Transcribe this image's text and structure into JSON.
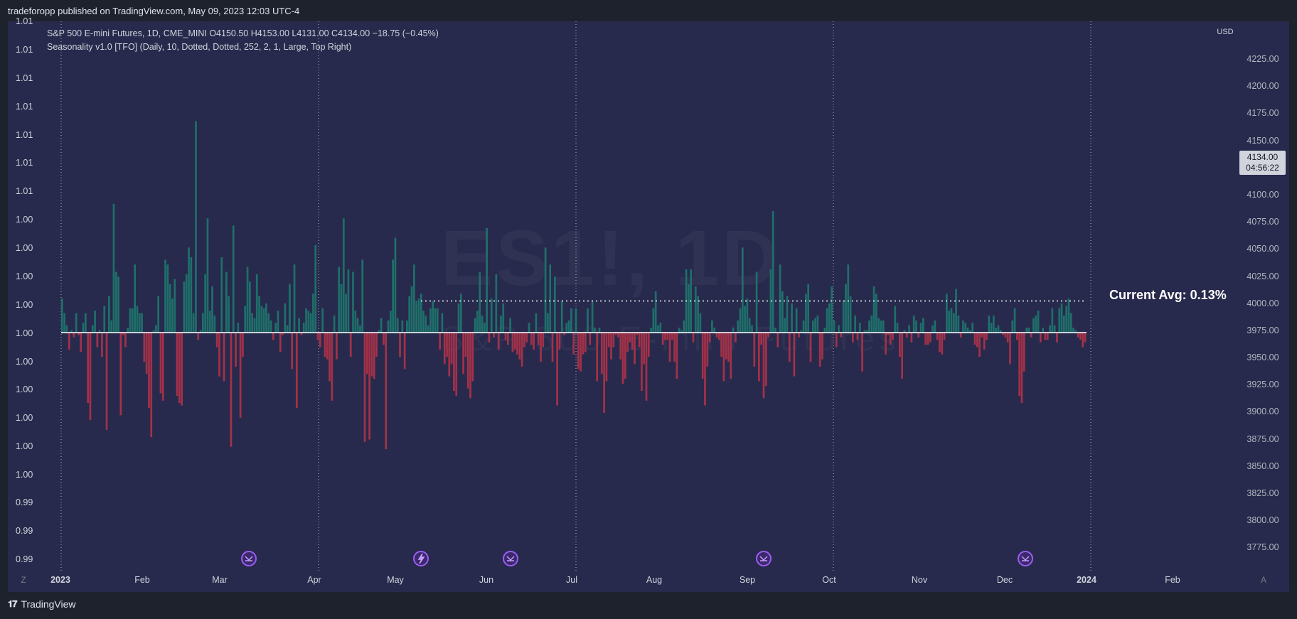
{
  "header": {
    "published": "tradeforopp published on TradingView.com, May 09, 2023 12:03 UTC-4"
  },
  "legend": {
    "line1": "S&P 500 E-mini Futures, 1D, CME_MINI  O4150.50  H4153.00  L4131.00  C4134.00  −18.75 (−0.45%)",
    "line2": "Seasonality v1.0 [TFO] (Daily, 10, Dotted, Dotted, 252, 2, 1, Large, Top Right)"
  },
  "watermark": {
    "symbol": "ES1!, 1D",
    "name": "S&P 500 E-mini Futures"
  },
  "price_axis": {
    "currency": "USD",
    "labels": [
      "4225.00",
      "4200.00",
      "4175.00",
      "4150.00",
      "4100.00",
      "4075.00",
      "4050.00",
      "4025.00",
      "4000.00",
      "3975.00",
      "3950.00",
      "3925.00",
      "3900.00",
      "3875.00",
      "3850.00",
      "3825.00",
      "3800.00",
      "3775.00"
    ],
    "current_price": "4134.00",
    "countdown": "04:56:22"
  },
  "left_axis": {
    "labels": [
      "1.01",
      "1.01",
      "1.01",
      "1.01",
      "1.01",
      "1.01",
      "1.01",
      "1.00",
      "1.00",
      "1.00",
      "1.00",
      "1.00",
      "1.00",
      "1.00",
      "1.00",
      "1.00",
      "1.00",
      "0.99",
      "0.99",
      "0.99"
    ]
  },
  "time_axis": {
    "labels": [
      "2023",
      "Feb",
      "Mar",
      "Apr",
      "May",
      "Jun",
      "Jul",
      "Aug",
      "Sep",
      "Oct",
      "Nov",
      "Dec",
      "2024",
      "Feb"
    ],
    "corner_left": "Z",
    "corner_right": "A"
  },
  "avg_label": "Current Avg: 0.13%",
  "footer": {
    "brand": "TradingView"
  },
  "colors": {
    "positive": "#1f6f6b",
    "negative": "#a33149",
    "background": "#272a4c"
  },
  "chart_data": {
    "type": "bar",
    "title": "",
    "y_unit": "percent",
    "x_range": [
      "2023-01-01",
      "2023-12-31"
    ],
    "avg_value": 0.13,
    "values": [
      0.14,
      0.08,
      0.03,
      -0.07,
      0.01,
      -0.02,
      0.08,
      -0.01,
      -0.08,
      0.04,
      0.08,
      -0.29,
      -0.36,
      0.03,
      0.09,
      -0.06,
      0.01,
      -0.1,
      0.11,
      -0.4,
      0.15,
      0.05,
      0.53,
      0.25,
      0.23,
      -0.34,
      -0.01,
      -0.06,
      0.02,
      0.1,
      0.1,
      0.28,
      0.11,
      0.08,
      0.08,
      -0.12,
      -0.17,
      -0.31,
      -0.43,
      0.01,
      0.03,
      0.15,
      -0.25,
      -0.28,
      0.3,
      0.28,
      0.2,
      0.14,
      0.22,
      -0.26,
      -0.29,
      -0.3,
      0.21,
      0.24,
      0.35,
      0.31,
      0.08,
      0.87,
      -0.03,
      0.01,
      0.08,
      0.24,
      0.47,
      0.09,
      0.19,
      0.07,
      -0.06,
      -0.18,
      0.31,
      -0.2,
      0.25,
      0.15,
      -0.47,
      0.44,
      -0.14,
      0.04,
      -0.35,
      -0.1,
      0.11,
      0.27,
      0.21,
      0.08,
      0.06,
      0.24,
      0.15,
      0.11,
      0.1,
      0.12,
      0.08,
      0.05,
      -0.03,
      0.04,
      0.09,
      -0.08,
      -0.01,
      0.12,
      0.03,
      0.2,
      -0.15,
      0.28,
      -0.31,
      0.06,
      -0.01,
      0.04,
      0.1,
      0.09,
      0.08,
      0.16,
      0.36,
      -0.03,
      -0.06,
      0.1,
      -0.1,
      -0.11,
      -0.2,
      -0.28,
      0.07,
      -0.11,
      0.27,
      0.2,
      0.47,
      0.16,
      0.26,
      -0.1,
      0.25,
      0.09,
      0.06,
      0.03,
      0.3,
      -0.45,
      -0.17,
      -0.44,
      -0.18,
      -0.19,
      -0.1,
      0.01,
      0.06,
      -0.05,
      -0.48,
      0.05,
      0.09,
      0.3,
      0.39,
      0.06,
      -0.1,
      0.05,
      -0.15,
      0.05,
      0.15,
      0.19,
      0.28,
      0.13,
      0.14,
      0.16,
      0.09,
      0.07,
      0.03,
      0.1,
      0.13,
      0.1,
      0.1,
      -0.07,
      0.08,
      -0.13,
      -0.1,
      -0.18,
      -0.13,
      -0.24,
      -0.26,
      0.12,
      0.16,
      -0.17,
      -0.1,
      -0.23,
      -0.27,
      -0.2,
      0.06,
      0.09,
      0.25,
      0.07,
      0.04,
      0.43,
      -0.04,
      0.14,
      -0.02,
      0.24,
      -0.07,
      0.07,
      0.12,
      -0.03,
      -0.05,
      0.06,
      -0.08,
      -0.07,
      -0.09,
      -0.11,
      -0.14,
      -0.06,
      -0.04,
      0.04,
      -0.05,
      -0.07,
      0.08,
      -0.05,
      -0.12,
      -0.06,
      0.35,
      0.08,
      0.28,
      -0.12,
      0.23,
      -0.3,
      -0.07,
      0.13,
      -0.01,
      0.04,
      0.05,
      0.1,
      -0.09,
      0.1,
      -0.15,
      -0.16,
      -0.09,
      -0.08,
      0.1,
      -0.05,
      0.13,
      0.02,
      -0.2,
      0.02,
      -0.17,
      -0.33,
      -0.2,
      -0.06,
      -0.11,
      -0.06,
      -0.01,
      -0.02,
      -0.11,
      -0.21,
      -0.19,
      -0.08,
      -0.04,
      -0.07,
      -0.13,
      -0.01,
      -0.06,
      -0.24,
      -0.13,
      -0.28,
      -0.1,
      0.02,
      0.1,
      0.17,
      0.03,
      0.04,
      -0.05,
      -0.03,
      -0.03,
      -0.12,
      -0.03,
      -0.12,
      -0.19,
      0.02,
      0.01,
      0.05,
      0.26,
      0.2,
      0.26,
      -0.04,
      0.19,
      0.15,
      0.08,
      -0.19,
      -0.3,
      -0.14,
      -0.04,
      0.05,
      0.02,
      -0.02,
      -0.03,
      -0.1,
      -0.2,
      -0.11,
      -0.12,
      -0.19,
      0.02,
      -0.04,
      0.05,
      0.1,
      0.35,
      0.11,
      0.14,
      0.06,
      0.03,
      -0.14,
      0.25,
      -0.2,
      -0.05,
      -0.27,
      -0.22,
      -0.02,
      0.26,
      0.5,
      0.02,
      -0.06,
      0.28,
      0.17,
      0.06,
      0.15,
      -0.12,
      0.12,
      -0.18,
      0.1,
      -0.02,
      0.01,
      0.05,
      0.16,
      0.2,
      -0.12,
      0.05,
      0.06,
      0.07,
      -0.14,
      -0.11,
      0.02,
      0.1,
      0.12,
      0.19,
      0.05,
      -0.06,
      0.03,
      -0.02,
      0.13,
      0.2,
      0.28,
      0.15,
      -0.04,
      0.07,
      -0.03,
      0.04,
      -0.16,
      0.01,
      0.01,
      0.05,
      0.07,
      0.19,
      0.16,
      0.06,
      0.05,
      0.05,
      -0.09,
      -0.01,
      -0.05,
      -0.03,
      0.11,
      0.04,
      -0.1,
      -0.19,
      0.01,
      -0.02,
      0.03,
      -0.04,
      0.07,
      0.05,
      -0.02,
      0.04,
      0.06,
      -0.05,
      -0.05,
      -0.04,
      0.03,
      0.05,
      -0.03,
      -0.08,
      -0.09,
      -0.03,
      0.16,
      0.09,
      0.1,
      0.08,
      0.18,
      0.07,
      -0.02,
      0.05,
      0.04,
      0.02,
      0.01,
      0.04,
      -0.05,
      -0.06,
      -0.1,
      -0.02,
      -0.07,
      -0.03,
      0.07,
      0.04,
      0.07,
      0.02,
      0.03,
      0.01,
      -0.01,
      -0.02,
      -0.04,
      -0.13,
      0.05,
      0.1,
      -0.03,
      -0.26,
      -0.29,
      -0.16,
      0.02,
      0.02,
      -0.02,
      0.06,
      0.07,
      0.09,
      -0.04,
      0.02,
      -0.03,
      -0.03,
      0.03,
      0.1,
      0.03,
      -0.04,
      0.1,
      0.12,
      0.07,
      0.11,
      0.14,
      0.08,
      0.02,
      0.01,
      -0.02,
      -0.03,
      -0.06,
      -0.04
    ]
  }
}
